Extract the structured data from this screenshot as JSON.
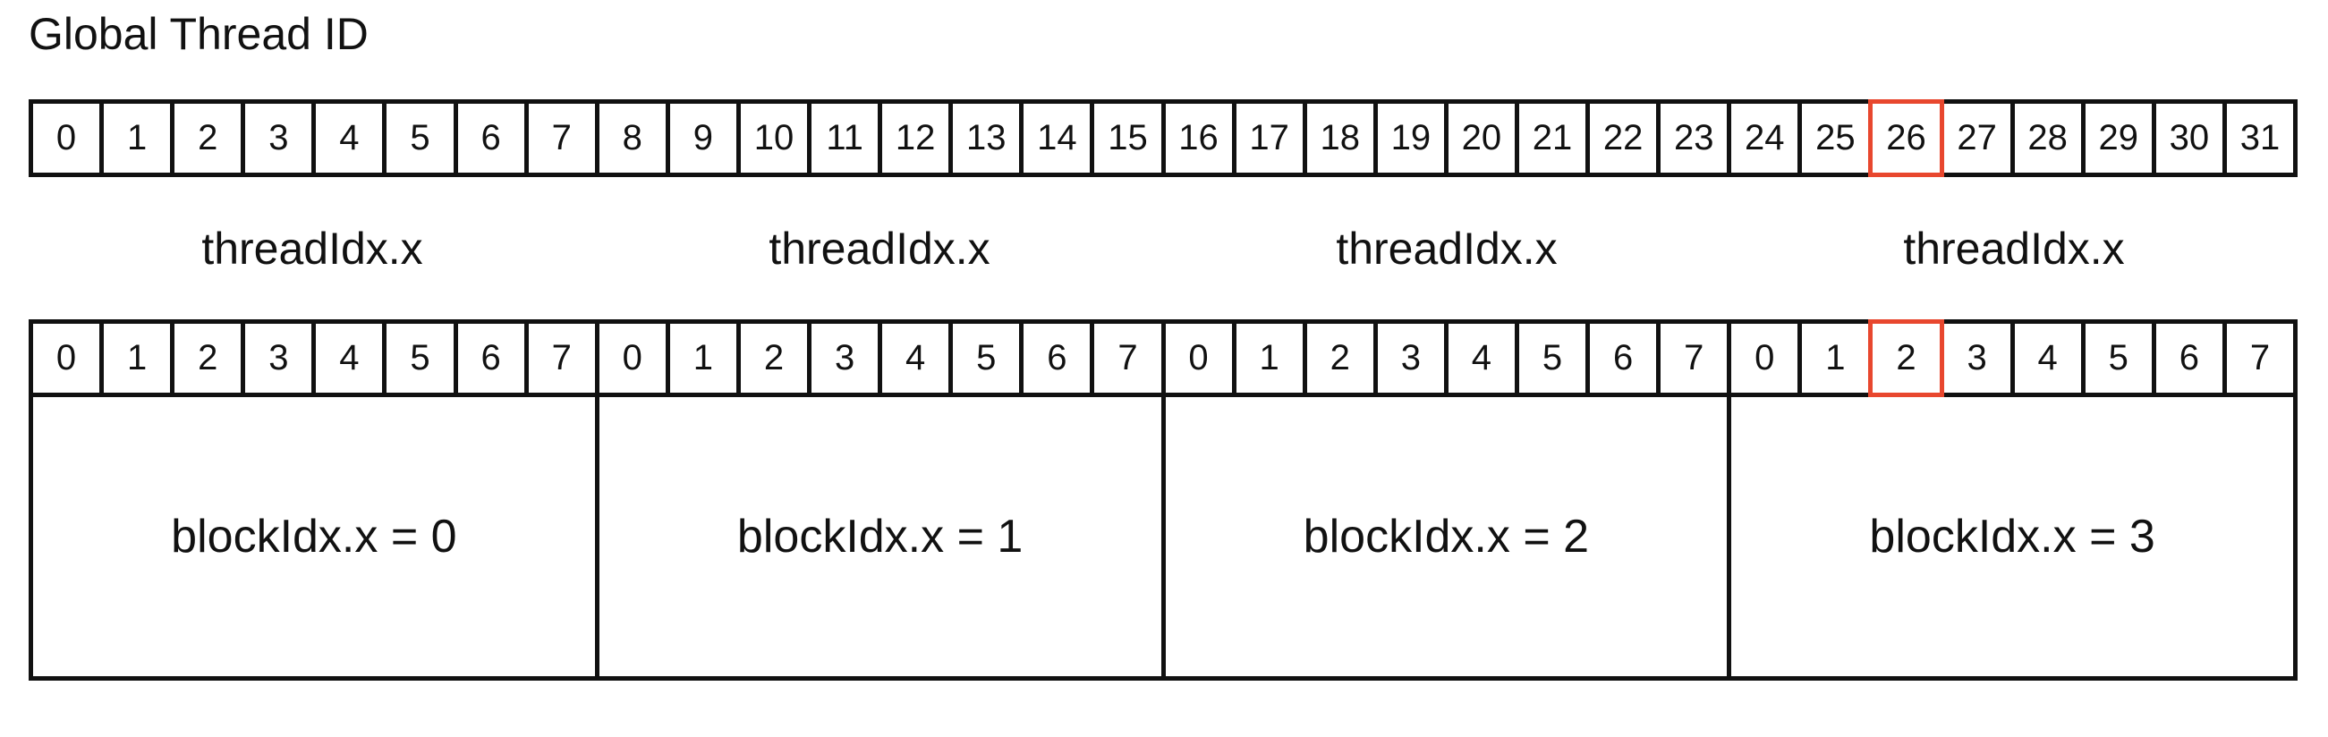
{
  "title": "Global Thread ID",
  "highlight_color": "#e8472e",
  "global_ids": [
    "0",
    "1",
    "2",
    "3",
    "4",
    "5",
    "6",
    "7",
    "8",
    "9",
    "10",
    "11",
    "12",
    "13",
    "14",
    "15",
    "16",
    "17",
    "18",
    "19",
    "20",
    "21",
    "22",
    "23",
    "24",
    "25",
    "26",
    "27",
    "28",
    "29",
    "30",
    "31"
  ],
  "highlighted_global_index": 26,
  "thread_labels": [
    "threadIdx.x",
    "threadIdx.x",
    "threadIdx.x",
    "threadIdx.x"
  ],
  "local_ids": [
    "0",
    "1",
    "2",
    "3",
    "4",
    "5",
    "6",
    "7",
    "0",
    "1",
    "2",
    "3",
    "4",
    "5",
    "6",
    "7",
    "0",
    "1",
    "2",
    "3",
    "4",
    "5",
    "6",
    "7",
    "0",
    "1",
    "2",
    "3",
    "4",
    "5",
    "6",
    "7"
  ],
  "highlighted_local_index": 26,
  "blocks": [
    "blockIdx.x = 0",
    "blockIdx.x = 1",
    "blockIdx.x = 2",
    "blockIdx.x = 3"
  ]
}
